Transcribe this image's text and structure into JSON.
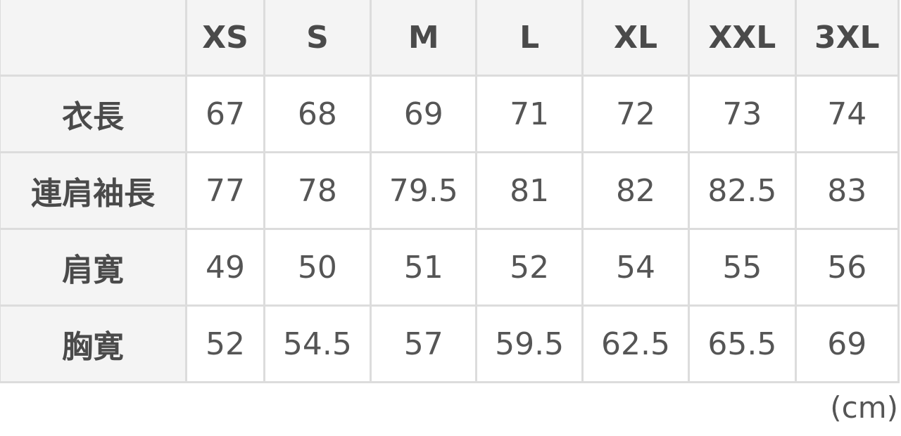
{
  "table": {
    "columns": [
      "",
      "XS",
      "S",
      "M",
      "L",
      "XL",
      "XXL",
      "3XL"
    ],
    "rows": [
      {
        "label": "衣長",
        "values": [
          "67",
          "68",
          "69",
          "71",
          "72",
          "73",
          "74"
        ]
      },
      {
        "label": "連肩袖長",
        "values": [
          "77",
          "78",
          "79.5",
          "81",
          "82",
          "82.5",
          "83"
        ]
      },
      {
        "label": "肩寛",
        "values": [
          "49",
          "50",
          "51",
          "52",
          "54",
          "55",
          "56"
        ]
      },
      {
        "label": "胸寛",
        "values": [
          "52",
          "54.5",
          "57",
          "59.5",
          "62.5",
          "65.5",
          "69"
        ]
      }
    ]
  },
  "unit": "(cm)"
}
